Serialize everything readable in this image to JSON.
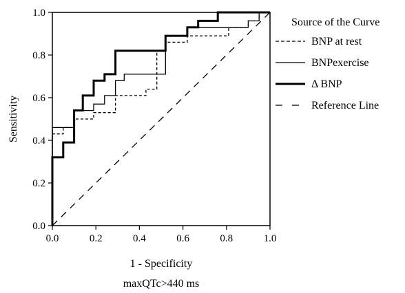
{
  "chart_data": {
    "type": "line",
    "title": "",
    "caption": "maxQTc>440 ms",
    "xlabel": "1 - Specificity",
    "ylabel": "Sensitivity",
    "xlim": [
      0.0,
      1.0
    ],
    "ylim": [
      0.0,
      1.0
    ],
    "xticks": [
      "0.0",
      "0.2",
      "0.4",
      "0.6",
      "0.8",
      "1.0"
    ],
    "yticks": [
      "0.0",
      "0.2",
      "0.4",
      "0.6",
      "0.8",
      "1.0"
    ],
    "grid": false,
    "legend": {
      "title": "Source of the Curve",
      "placement": "right"
    },
    "series": [
      {
        "name": "BNP at rest",
        "style": "dashed",
        "width": "thin",
        "points": [
          [
            0,
            0
          ],
          [
            0,
            0.43
          ],
          [
            0.05,
            0.43
          ],
          [
            0.05,
            0.46
          ],
          [
            0.1,
            0.46
          ],
          [
            0.1,
            0.5
          ],
          [
            0.19,
            0.5
          ],
          [
            0.19,
            0.53
          ],
          [
            0.29,
            0.53
          ],
          [
            0.29,
            0.61
          ],
          [
            0.43,
            0.61
          ],
          [
            0.43,
            0.64
          ],
          [
            0.48,
            0.64
          ],
          [
            0.48,
            0.82
          ],
          [
            0.52,
            0.82
          ],
          [
            0.52,
            0.86
          ],
          [
            0.62,
            0.86
          ],
          [
            0.62,
            0.89
          ],
          [
            0.81,
            0.89
          ],
          [
            0.81,
            0.93
          ],
          [
            0.9,
            0.93
          ],
          [
            0.9,
            0.96
          ],
          [
            0.95,
            0.96
          ],
          [
            0.95,
            1.0
          ],
          [
            1.0,
            1.0
          ]
        ]
      },
      {
        "name": "BNPexercise",
        "style": "solid",
        "width": "thin",
        "points": [
          [
            0,
            0
          ],
          [
            0,
            0.46
          ],
          [
            0.1,
            0.46
          ],
          [
            0.1,
            0.54
          ],
          [
            0.14,
            0.54
          ],
          [
            0.14,
            0.54
          ],
          [
            0.19,
            0.54
          ],
          [
            0.19,
            0.57
          ],
          [
            0.24,
            0.57
          ],
          [
            0.24,
            0.61
          ],
          [
            0.29,
            0.61
          ],
          [
            0.29,
            0.68
          ],
          [
            0.33,
            0.68
          ],
          [
            0.33,
            0.71
          ],
          [
            0.52,
            0.71
          ],
          [
            0.52,
            0.89
          ],
          [
            0.62,
            0.89
          ],
          [
            0.62,
            0.93
          ],
          [
            0.9,
            0.93
          ],
          [
            0.9,
            0.96
          ],
          [
            0.95,
            0.96
          ],
          [
            0.95,
            1.0
          ],
          [
            1.0,
            1.0
          ]
        ]
      },
      {
        "name": "Δ BNP",
        "style": "solid",
        "width": "thick",
        "points": [
          [
            0,
            0
          ],
          [
            0,
            0.32
          ],
          [
            0.05,
            0.32
          ],
          [
            0.05,
            0.39
          ],
          [
            0.1,
            0.39
          ],
          [
            0.1,
            0.54
          ],
          [
            0.14,
            0.54
          ],
          [
            0.14,
            0.61
          ],
          [
            0.19,
            0.61
          ],
          [
            0.19,
            0.68
          ],
          [
            0.24,
            0.68
          ],
          [
            0.24,
            0.71
          ],
          [
            0.29,
            0.71
          ],
          [
            0.29,
            0.82
          ],
          [
            0.52,
            0.82
          ],
          [
            0.52,
            0.89
          ],
          [
            0.62,
            0.89
          ],
          [
            0.62,
            0.93
          ],
          [
            0.67,
            0.93
          ],
          [
            0.67,
            0.96
          ],
          [
            0.76,
            0.96
          ],
          [
            0.76,
            1.0
          ],
          [
            1.0,
            1.0
          ]
        ]
      },
      {
        "name": "Reference Line",
        "style": "long-dash",
        "width": "thin",
        "points": [
          [
            0,
            0
          ],
          [
            1,
            1
          ]
        ]
      }
    ]
  }
}
